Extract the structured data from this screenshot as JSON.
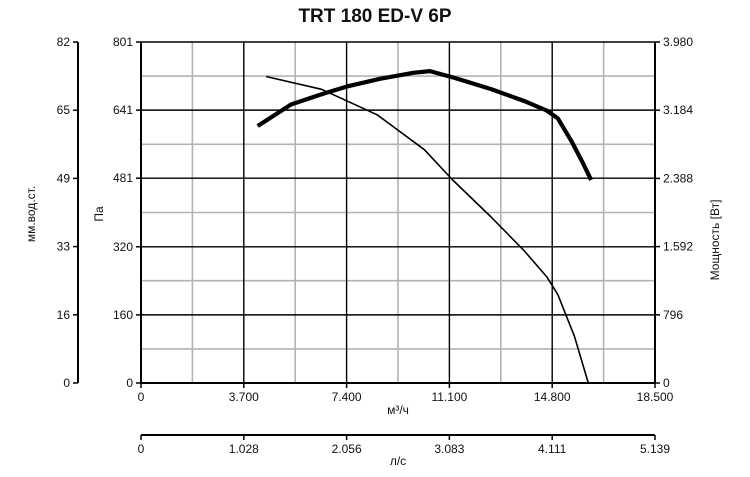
{
  "chart_data": {
    "type": "line",
    "title": "TRT 180 ED-V 6P",
    "x_axis_flow": {
      "unit": "м³/ч",
      "range": [
        0,
        18500
      ],
      "tick_values": [
        0,
        3700,
        7400,
        11100,
        14800,
        18500
      ],
      "tick_labels": [
        "0",
        "3.700",
        "7.400",
        "11.100",
        "14.800",
        "18.500"
      ]
    },
    "x_axis_flow_ls": {
      "unit": "л/с",
      "range": [
        0,
        5139
      ],
      "tick_values": [
        0,
        1028,
        2056,
        3083,
        4111,
        5139
      ],
      "tick_labels": [
        "0",
        "1.028",
        "2.056",
        "3.083",
        "4.111",
        "5.139"
      ]
    },
    "y_axis_pressure": {
      "unit": "Па",
      "range": [
        0,
        801
      ],
      "tick_values": [
        0,
        160,
        320,
        481,
        641,
        801
      ],
      "tick_labels": [
        "0",
        "160",
        "320",
        "481",
        "641",
        "801"
      ]
    },
    "y_axis_mm": {
      "unit": "мм.вод.ст.",
      "tick_labels": [
        "0",
        "16",
        "33",
        "49",
        "65",
        "82"
      ]
    },
    "y_axis_power": {
      "unit": "Мощность [Вт]",
      "range": [
        0,
        3980
      ],
      "tick_labels": [
        "0",
        "796",
        "1.592",
        "2.388",
        "3.184",
        "3.980"
      ]
    },
    "grid": true,
    "series": [
      {
        "role": "pressure",
        "axis": "pressure",
        "line": "thin",
        "points": [
          [
            4500,
            720
          ],
          [
            6500,
            690
          ],
          [
            8500,
            630
          ],
          [
            10200,
            548
          ],
          [
            11200,
            478
          ],
          [
            12600,
            390
          ],
          [
            13800,
            310
          ],
          [
            14600,
            250
          ],
          [
            15000,
            208
          ],
          [
            15600,
            110
          ],
          [
            16100,
            0
          ]
        ]
      },
      {
        "role": "power",
        "axis": "power",
        "line": "thick",
        "points": [
          [
            4200,
            3000
          ],
          [
            5400,
            3250
          ],
          [
            6500,
            3370
          ],
          [
            7400,
            3460
          ],
          [
            8600,
            3550
          ],
          [
            9800,
            3620
          ],
          [
            10400,
            3640
          ],
          [
            11300,
            3560
          ],
          [
            12600,
            3430
          ],
          [
            13800,
            3290
          ],
          [
            14600,
            3180
          ],
          [
            15000,
            3090
          ],
          [
            15500,
            2820
          ],
          [
            15900,
            2570
          ],
          [
            16200,
            2370
          ]
        ]
      }
    ],
    "colors": {
      "line": "#000000",
      "grid": "#b3b3b3",
      "major_grid": "#000000"
    }
  }
}
